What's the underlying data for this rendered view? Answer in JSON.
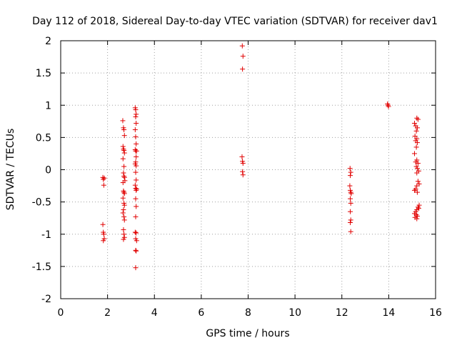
{
  "chart_data": {
    "type": "scatter",
    "title": "Day 112 of 2018, Sidereal Day-to-day VTEC variation (SDTVAR) for receiver dav1",
    "xlabel": "GPS time / hours",
    "ylabel": "SDTVAR / TECUs",
    "xlim": [
      0,
      16
    ],
    "ylim": [
      -2,
      2
    ],
    "x_ticks": [
      0,
      2,
      4,
      6,
      8,
      10,
      12,
      14,
      16
    ],
    "y_ticks": [
      -2,
      -1.5,
      -1,
      -0.5,
      0,
      0.5,
      1,
      1.5,
      2
    ],
    "x_tick_labels": [
      "0",
      "2",
      "4",
      "6",
      "8",
      "10",
      "12",
      "14",
      "16"
    ],
    "y_tick_labels": [
      "-2",
      "-1.5",
      "-1",
      "-0.5",
      "0",
      "0.5",
      "1",
      "1.5",
      "2"
    ],
    "grid": true,
    "marker": "+",
    "color": "#e00000",
    "series": [
      {
        "name": "dav1",
        "points": [
          [
            1.8,
            -0.12
          ],
          [
            1.82,
            -0.15
          ],
          [
            1.84,
            -0.24
          ],
          [
            1.86,
            -0.13
          ],
          [
            1.8,
            -0.85
          ],
          [
            1.82,
            -0.97
          ],
          [
            1.84,
            -1.0
          ],
          [
            1.86,
            -1.07
          ],
          [
            1.82,
            -1.1
          ],
          [
            2.65,
            0.76
          ],
          [
            2.68,
            0.65
          ],
          [
            2.7,
            0.62
          ],
          [
            2.72,
            0.53
          ],
          [
            2.66,
            0.36
          ],
          [
            2.68,
            0.32
          ],
          [
            2.7,
            0.3
          ],
          [
            2.72,
            0.26
          ],
          [
            2.66,
            0.17
          ],
          [
            2.7,
            0.05
          ],
          [
            2.68,
            -0.05
          ],
          [
            2.7,
            -0.1
          ],
          [
            2.72,
            -0.12
          ],
          [
            2.74,
            -0.17
          ],
          [
            2.66,
            -0.2
          ],
          [
            2.68,
            -0.33
          ],
          [
            2.7,
            -0.35
          ],
          [
            2.72,
            -0.37
          ],
          [
            2.66,
            -0.44
          ],
          [
            2.7,
            -0.52
          ],
          [
            2.72,
            -0.55
          ],
          [
            2.68,
            -0.62
          ],
          [
            2.66,
            -0.67
          ],
          [
            2.7,
            -0.73
          ],
          [
            2.72,
            -0.78
          ],
          [
            2.68,
            -0.93
          ],
          [
            2.7,
            -1.0
          ],
          [
            2.72,
            -1.05
          ],
          [
            2.68,
            -1.08
          ],
          [
            3.18,
            0.96
          ],
          [
            3.2,
            0.93
          ],
          [
            3.22,
            0.86
          ],
          [
            3.2,
            0.82
          ],
          [
            3.22,
            0.72
          ],
          [
            3.18,
            0.62
          ],
          [
            3.2,
            0.51
          ],
          [
            3.22,
            0.4
          ],
          [
            3.18,
            0.31
          ],
          [
            3.2,
            0.29
          ],
          [
            3.24,
            0.29
          ],
          [
            3.22,
            0.2
          ],
          [
            3.2,
            0.12
          ],
          [
            3.18,
            0.09
          ],
          [
            3.22,
            0.06
          ],
          [
            3.2,
            -0.04
          ],
          [
            3.22,
            -0.16
          ],
          [
            3.18,
            -0.24
          ],
          [
            3.2,
            -0.29
          ],
          [
            3.24,
            -0.3
          ],
          [
            3.22,
            -0.32
          ],
          [
            3.2,
            -0.45
          ],
          [
            3.22,
            -0.57
          ],
          [
            3.2,
            -0.73
          ],
          [
            3.18,
            -0.97
          ],
          [
            3.22,
            -0.98
          ],
          [
            3.2,
            -1.07
          ],
          [
            3.24,
            -1.1
          ],
          [
            3.2,
            -1.25
          ],
          [
            3.22,
            -1.26
          ],
          [
            3.2,
            -1.52
          ],
          [
            7.75,
            1.92
          ],
          [
            7.78,
            1.76
          ],
          [
            7.76,
            1.56
          ],
          [
            7.74,
            0.2
          ],
          [
            7.76,
            0.13
          ],
          [
            7.78,
            0.1
          ],
          [
            7.76,
            -0.03
          ],
          [
            7.78,
            -0.08
          ],
          [
            12.35,
            0.02
          ],
          [
            12.38,
            -0.04
          ],
          [
            12.36,
            -0.09
          ],
          [
            12.34,
            -0.25
          ],
          [
            12.36,
            -0.32
          ],
          [
            12.38,
            -0.35
          ],
          [
            12.4,
            -0.37
          ],
          [
            12.36,
            -0.45
          ],
          [
            12.38,
            -0.52
          ],
          [
            12.36,
            -0.65
          ],
          [
            12.38,
            -0.78
          ],
          [
            12.36,
            -0.82
          ],
          [
            12.38,
            -0.96
          ],
          [
            13.95,
            1.02
          ],
          [
            13.97,
            1.0
          ],
          [
            13.99,
            0.98
          ],
          [
            15.1,
            0.72
          ],
          [
            15.2,
            0.8
          ],
          [
            15.25,
            0.78
          ],
          [
            15.15,
            0.68
          ],
          [
            15.22,
            0.65
          ],
          [
            15.18,
            0.6
          ],
          [
            15.12,
            0.52
          ],
          [
            15.2,
            0.48
          ],
          [
            15.15,
            0.45
          ],
          [
            15.22,
            0.42
          ],
          [
            15.18,
            0.35
          ],
          [
            15.1,
            0.25
          ],
          [
            15.2,
            0.15
          ],
          [
            15.15,
            0.12
          ],
          [
            15.25,
            0.1
          ],
          [
            15.18,
            0.05
          ],
          [
            15.22,
            0.02
          ],
          [
            15.28,
            -0.02
          ],
          [
            15.2,
            -0.05
          ],
          [
            15.25,
            -0.18
          ],
          [
            15.3,
            -0.22
          ],
          [
            15.2,
            -0.25
          ],
          [
            15.15,
            -0.3
          ],
          [
            15.1,
            -0.32
          ],
          [
            15.22,
            -0.35
          ],
          [
            15.3,
            -0.55
          ],
          [
            15.25,
            -0.58
          ],
          [
            15.2,
            -0.62
          ],
          [
            15.15,
            -0.65
          ],
          [
            15.1,
            -0.68
          ],
          [
            15.18,
            -0.7
          ],
          [
            15.22,
            -0.72
          ],
          [
            15.12,
            -0.74
          ],
          [
            15.2,
            -0.76
          ],
          [
            15.28,
            -0.6
          ]
        ]
      }
    ]
  }
}
